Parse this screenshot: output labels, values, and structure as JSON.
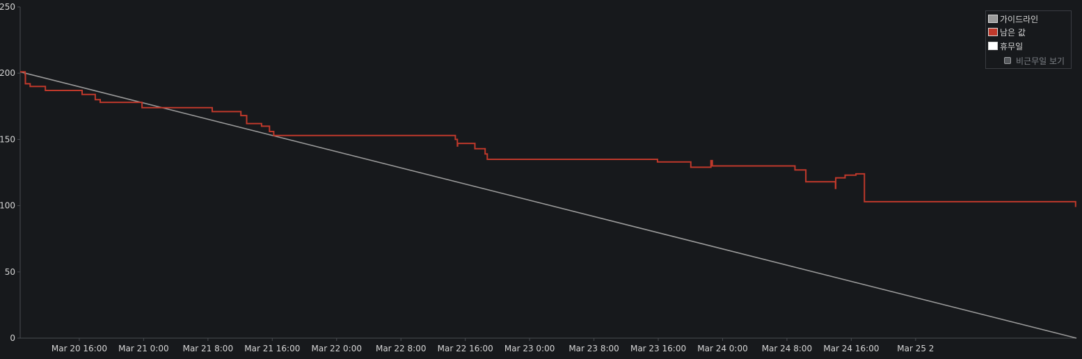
{
  "chart_data": {
    "type": "line",
    "title": "",
    "xlabel": "",
    "ylabel": "",
    "ylim": [
      0,
      250
    ],
    "xlim": [
      "2024-03-20T08:39",
      "2024-03-25T20:00"
    ],
    "y_ticks": [
      0,
      50,
      100,
      150,
      200,
      250
    ],
    "x_ticks": [
      {
        "x": "2024-03-20T16:00",
        "label": "Mar 20 16:00"
      },
      {
        "x": "2024-03-21T00:00",
        "label": "Mar 21 0:00"
      },
      {
        "x": "2024-03-21T08:00",
        "label": "Mar 21 8:00"
      },
      {
        "x": "2024-03-21T16:00",
        "label": "Mar 21 16:00"
      },
      {
        "x": "2024-03-22T00:00",
        "label": "Mar 22 0:00"
      },
      {
        "x": "2024-03-22T08:00",
        "label": "Mar 22 8:00"
      },
      {
        "x": "2024-03-22T16:00",
        "label": "Mar 22 16:00"
      },
      {
        "x": "2024-03-23T00:00",
        "label": "Mar 23 0:00"
      },
      {
        "x": "2024-03-23T08:00",
        "label": "Mar 23 8:00"
      },
      {
        "x": "2024-03-23T16:00",
        "label": "Mar 23 16:00"
      },
      {
        "x": "2024-03-24T00:00",
        "label": "Mar 24 0:00"
      },
      {
        "x": "2024-03-24T08:00",
        "label": "Mar 24 8:00"
      },
      {
        "x": "2024-03-24T16:00",
        "label": "Mar 24 16:00"
      },
      {
        "x": "2024-03-25T00:00",
        "label": "Mar 25 2"
      }
    ],
    "legend_position": "top-right",
    "grid": false,
    "series": [
      {
        "name": "가이드라인",
        "color": "#9a9a9a",
        "step": false,
        "points": [
          {
            "x": "2024-03-20T08:39",
            "y": 201
          },
          {
            "x": "2024-03-25T20:00",
            "y": 0
          }
        ]
      },
      {
        "name": "남은 값",
        "color": "#c0392b",
        "step": true,
        "points": [
          {
            "x": "2024-03-20T08:39",
            "y": 201
          },
          {
            "x": "2024-03-20T09:16",
            "y": 199
          },
          {
            "x": "2024-03-20T09:18",
            "y": 192
          },
          {
            "x": "2024-03-20T09:53",
            "y": 190
          },
          {
            "x": "2024-03-20T11:47",
            "y": 187
          },
          {
            "x": "2024-03-20T16:21",
            "y": 184
          },
          {
            "x": "2024-03-20T17:59",
            "y": 180
          },
          {
            "x": "2024-03-20T18:36",
            "y": 178
          },
          {
            "x": "2024-03-20T23:48",
            "y": 174
          },
          {
            "x": "2024-03-21T08:32",
            "y": 171
          },
          {
            "x": "2024-03-21T12:06",
            "y": 168
          },
          {
            "x": "2024-03-21T12:49",
            "y": 162
          },
          {
            "x": "2024-03-21T14:40",
            "y": 160
          },
          {
            "x": "2024-03-21T15:39",
            "y": 156
          },
          {
            "x": "2024-03-21T16:11",
            "y": 153
          },
          {
            "x": "2024-03-22T14:46",
            "y": 150
          },
          {
            "x": "2024-03-22T15:01",
            "y": 145
          },
          {
            "x": "2024-03-22T15:03",
            "y": 147
          },
          {
            "x": "2024-03-22T17:12",
            "y": 143
          },
          {
            "x": "2024-03-22T18:28",
            "y": 139
          },
          {
            "x": "2024-03-22T18:44",
            "y": 135
          },
          {
            "x": "2024-03-23T15:54",
            "y": 133
          },
          {
            "x": "2024-03-23T20:03",
            "y": 129
          },
          {
            "x": "2024-03-23T22:33",
            "y": 134
          },
          {
            "x": "2024-03-23T22:43",
            "y": 130
          },
          {
            "x": "2024-03-24T09:00",
            "y": 127
          },
          {
            "x": "2024-03-24T10:21",
            "y": 118
          },
          {
            "x": "2024-03-24T14:02",
            "y": 113
          },
          {
            "x": "2024-03-24T14:04",
            "y": 121
          },
          {
            "x": "2024-03-24T15:14",
            "y": 123
          },
          {
            "x": "2024-03-24T16:35",
            "y": 124
          },
          {
            "x": "2024-03-24T17:38",
            "y": 103
          },
          {
            "x": "2024-03-25T19:54",
            "y": 99
          }
        ]
      }
    ],
    "legend": {
      "items": [
        {
          "label": "가이드라인",
          "color": "#9a9a9a"
        },
        {
          "label": "남은 값",
          "color": "#c0392b"
        },
        {
          "label": "휴무일",
          "color": "#ffffff"
        }
      ],
      "toggle_label": "비근무일 보기",
      "toggle_checked": false
    },
    "colors": {
      "background": "#17191c",
      "axis": "#4a4d52",
      "tick_text": "#d6d6d6",
      "legend_border": "#3a3d42"
    }
  }
}
